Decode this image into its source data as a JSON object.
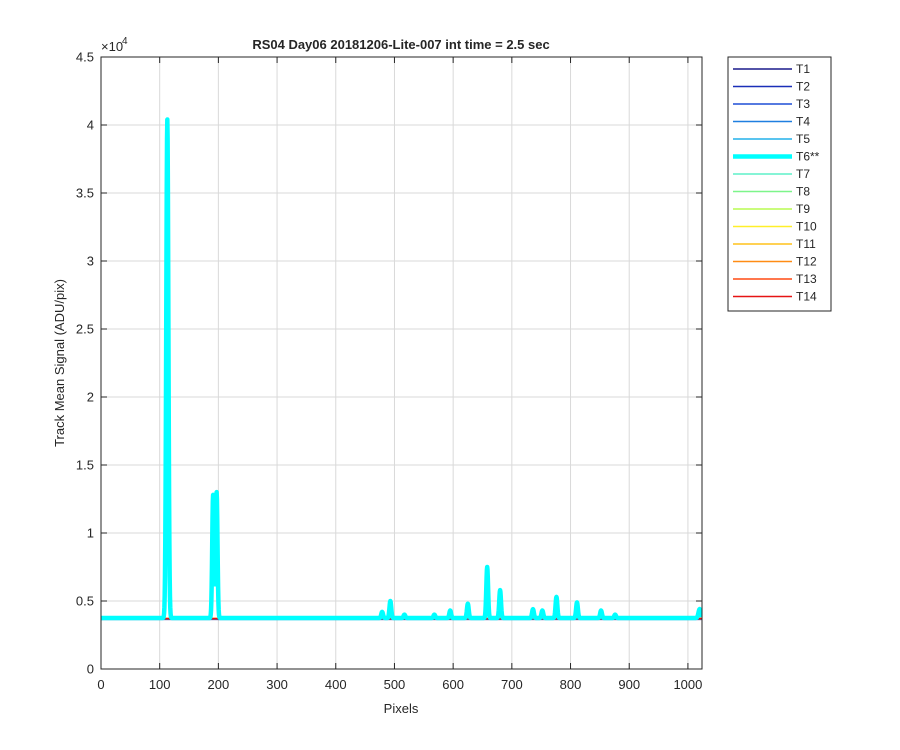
{
  "chart_data": {
    "type": "line",
    "title": "RS04 Day06 20181206-Lite-007 int time = 2.5 sec",
    "xlabel": "Pixels",
    "ylabel": "Track Mean Signal (ADU/pix)",
    "y_exponent_label": "×10",
    "y_exponent": "4",
    "xlim": [
      0,
      1024
    ],
    "ylim": [
      0,
      45000
    ],
    "xticks": [
      0,
      100,
      200,
      300,
      400,
      500,
      600,
      700,
      800,
      900,
      1000
    ],
    "yticks": [
      0,
      5000,
      10000,
      15000,
      20000,
      25000,
      30000,
      35000,
      40000,
      45000
    ],
    "ytick_labels": [
      "0",
      "0.5",
      "1",
      "1.5",
      "2",
      "2.5",
      "3",
      "3.5",
      "4",
      "4.5"
    ],
    "grid": true,
    "legend_position": "outside-top-right",
    "baseline_value": 3700,
    "series": [
      {
        "name": "T1",
        "color": "#1a1a8c",
        "width": 1.5,
        "baseline": 3650
      },
      {
        "name": "T2",
        "color": "#1a2fb8",
        "width": 1.5,
        "baseline": 3660
      },
      {
        "name": "T3",
        "color": "#1f4fd6",
        "width": 1.5,
        "baseline": 3670
      },
      {
        "name": "T4",
        "color": "#1f7fe0",
        "width": 1.5,
        "baseline": 3680
      },
      {
        "name": "T5",
        "color": "#22b0ea",
        "width": 1.5,
        "baseline": 3690
      },
      {
        "name": "T6**",
        "color": "#00ffff",
        "width": 4.5,
        "baseline": 3750,
        "peaks": [
          {
            "x": 113,
            "y": 40400,
            "w": 1.8
          },
          {
            "x": 191,
            "y": 12800,
            "w": 1.5
          },
          {
            "x": 197,
            "y": 13000,
            "w": 1.5
          },
          {
            "x": 479,
            "y": 4200,
            "w": 1.5
          },
          {
            "x": 493,
            "y": 5000,
            "w": 1.5
          },
          {
            "x": 517,
            "y": 4000,
            "w": 1.5
          },
          {
            "x": 568,
            "y": 4000,
            "w": 1.5
          },
          {
            "x": 595,
            "y": 4300,
            "w": 1.5
          },
          {
            "x": 625,
            "y": 4800,
            "w": 1.5
          },
          {
            "x": 658,
            "y": 7500,
            "w": 1.5
          },
          {
            "x": 680,
            "y": 5800,
            "w": 1.5
          },
          {
            "x": 736,
            "y": 4400,
            "w": 1.5
          },
          {
            "x": 752,
            "y": 4300,
            "w": 1.5
          },
          {
            "x": 776,
            "y": 5300,
            "w": 1.5
          },
          {
            "x": 811,
            "y": 4900,
            "w": 1.5
          },
          {
            "x": 852,
            "y": 4300,
            "w": 1.5
          },
          {
            "x": 876,
            "y": 4000,
            "w": 1.5
          },
          {
            "x": 1020,
            "y": 4400,
            "w": 2.0
          }
        ]
      },
      {
        "name": "T7",
        "color": "#5ef0c8",
        "width": 1.5,
        "baseline": 3700
      },
      {
        "name": "T8",
        "color": "#7df58a",
        "width": 1.5,
        "baseline": 3700
      },
      {
        "name": "T9",
        "color": "#b8fb50",
        "width": 1.5,
        "baseline": 3700
      },
      {
        "name": "T10",
        "color": "#ffef2a",
        "width": 1.5,
        "baseline": 3700
      },
      {
        "name": "T11",
        "color": "#ffc21c",
        "width": 1.5,
        "baseline": 3700
      },
      {
        "name": "T12",
        "color": "#ff8c14",
        "width": 1.5,
        "baseline": 3700
      },
      {
        "name": "T13",
        "color": "#ff4a12",
        "width": 1.5,
        "baseline": 3700
      },
      {
        "name": "T14",
        "color": "#e61414",
        "width": 1.5,
        "baseline": 3700
      }
    ]
  }
}
